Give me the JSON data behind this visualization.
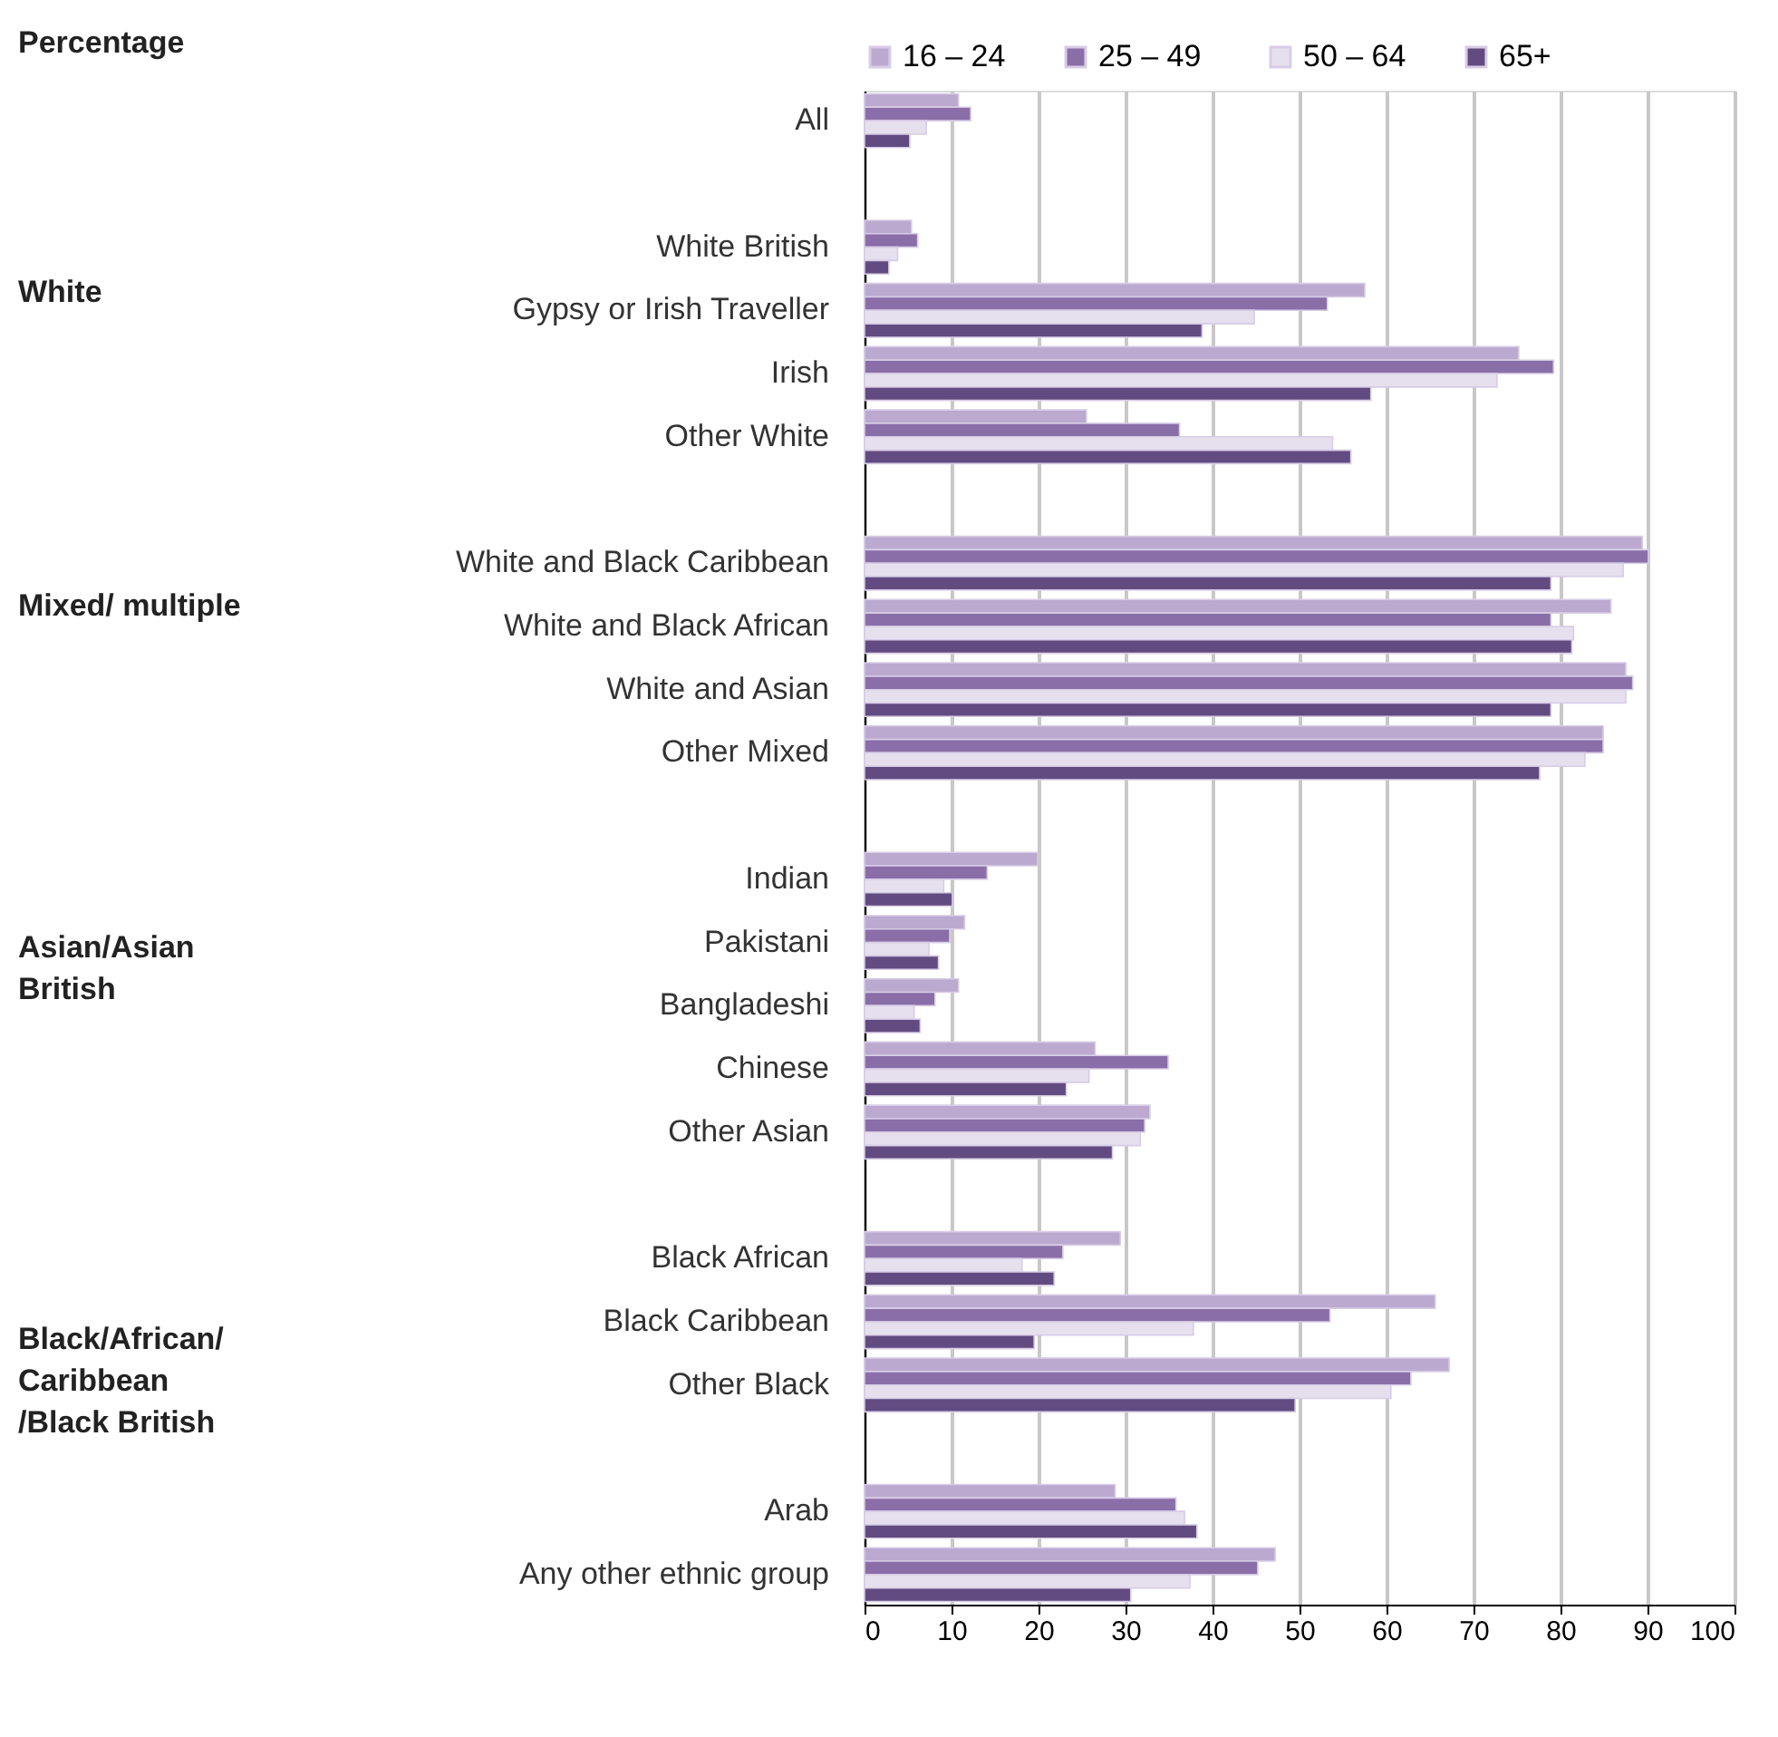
{
  "chart_data": {
    "type": "bar",
    "orientation": "horizontal",
    "title": "Percentage",
    "categories": [
      "All",
      null,
      "White British",
      "Gypsy or Irish Traveller",
      "Irish",
      "Other White",
      null,
      "White and Black Caribbean",
      "White and Black African",
      "White and Asian",
      "Other Mixed",
      null,
      "Indian",
      "Pakistani",
      "Bangladeshi",
      "Chinese",
      "Other Asian",
      null,
      "Black African",
      "Black Caribbean",
      "Other Black",
      null,
      "Arab",
      "Any other ethnic group"
    ],
    "series": [
      {
        "name": "16 – 24",
        "color": "#bba9cf",
        "values": [
          10.8,
          null,
          5.4,
          57.5,
          75.2,
          25.5,
          null,
          89.4,
          85.8,
          87.5,
          84.9,
          null,
          19.9,
          11.5,
          10.8,
          26.5,
          32.8,
          null,
          29.4,
          65.6,
          67.2,
          null,
          28.8,
          47.2
        ]
      },
      {
        "name": "25 –  49",
        "color": "#8a6ea8",
        "values": [
          12.2,
          null,
          6.1,
          53.2,
          79.2,
          36.2,
          null,
          90.1,
          78.9,
          88.3,
          84.9,
          null,
          14.1,
          9.8,
          8.1,
          34.9,
          32.2,
          null,
          22.8,
          53.5,
          62.8,
          null,
          35.8,
          45.2
        ]
      },
      {
        "name": "50 – 64",
        "color": "#e6e0ee",
        "values": [
          7.1,
          null,
          3.8,
          44.8,
          72.7,
          53.8,
          null,
          87.2,
          81.5,
          87.5,
          82.8,
          null,
          9.1,
          7.4,
          5.7,
          25.8,
          31.7,
          null,
          18.1,
          37.8,
          60.5,
          null,
          36.8,
          37.4
        ]
      },
      {
        "name": "65+",
        "color": "#624b80",
        "values": [
          5.2,
          null,
          2.8,
          38.8,
          58.2,
          55.9,
          null,
          78.9,
          81.3,
          78.9,
          77.6,
          null,
          10.1,
          8.5,
          6.4,
          23.2,
          28.5,
          null,
          21.8,
          19.5,
          49.5,
          null,
          38.2,
          30.6
        ]
      }
    ],
    "annotations": [
      "White",
      "Mixed/ multiple",
      "Asian/Asian\n British",
      "Black/African/\nCaribbean\n/Black British"
    ],
    "xlim": [
      0,
      100
    ],
    "xticks": [
      0,
      10,
      20,
      30,
      40,
      50,
      60,
      70,
      80,
      90,
      100
    ],
    "grid": "x",
    "legend": "top"
  }
}
